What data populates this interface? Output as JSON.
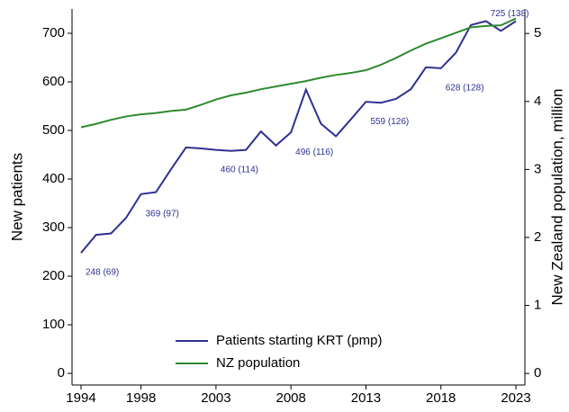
{
  "chart_data": {
    "type": "line",
    "y_label": "New patients",
    "y2_label": "New Zealand population, million",
    "x": [
      1994,
      1995,
      1996,
      1997,
      1998,
      1999,
      2000,
      2001,
      2002,
      2003,
      2004,
      2005,
      2006,
      2007,
      2008,
      2009,
      2010,
      2011,
      2012,
      2013,
      2014,
      2015,
      2016,
      2017,
      2018,
      2019,
      2020,
      2021,
      2022,
      2023
    ],
    "series": [
      {
        "name": "Patients starting KRT (pmp)",
        "color": "#2e3192",
        "values": [
          248,
          285,
          288,
          320,
          369,
          373,
          420,
          465,
          463,
          460,
          458,
          460,
          498,
          469,
          496,
          584,
          514,
          488,
          523,
          559,
          557,
          565,
          585,
          630,
          628,
          660,
          717,
          725,
          705,
          725
        ],
        "value_labels": [
          "248 (69)",
          null,
          null,
          null,
          "369 (97)",
          null,
          null,
          null,
          null,
          "460 (114)",
          null,
          null,
          null,
          null,
          "496 (116)",
          null,
          null,
          null,
          null,
          "559 (126)",
          null,
          null,
          null,
          null,
          "628 (128)",
          null,
          null,
          "725 (138)",
          null,
          null
        ]
      },
      {
        "name": "NZ population",
        "color": "#2e8b2e",
        "axis": "y2",
        "values": [
          3.62,
          3.67,
          3.73,
          3.78,
          3.81,
          3.83,
          3.86,
          3.88,
          3.95,
          4.03,
          4.09,
          4.13,
          4.18,
          4.22,
          4.26,
          4.3,
          4.35,
          4.39,
          4.42,
          4.46,
          4.54,
          4.64,
          4.75,
          4.85,
          4.93,
          5.01,
          5.09,
          5.11,
          5.12,
          5.22
        ]
      }
    ],
    "xlim": [
      1993.4,
      2023.6
    ],
    "xticks": [
      1994,
      1998,
      2003,
      2008,
      2013,
      2018,
      2023
    ],
    "ylim": [
      -24,
      750
    ],
    "yticks": [
      0,
      100,
      200,
      300,
      400,
      500,
      600,
      700
    ],
    "y2lim": [
      -0.17,
      5.36
    ],
    "y2ticks": [
      0,
      1,
      2,
      3,
      4,
      5
    ],
    "legend": "bottom"
  }
}
